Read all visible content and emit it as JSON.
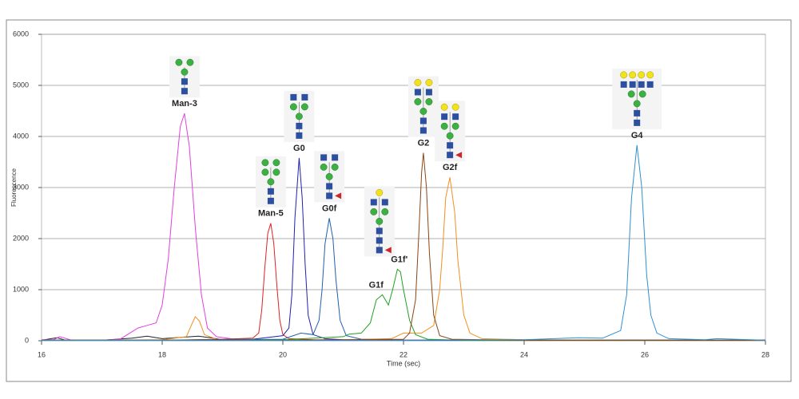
{
  "chart_data": {
    "type": "line",
    "xlabel": "Time (sec)",
    "ylabel": "Fluorescence",
    "xlim": [
      16,
      28
    ],
    "xticks": [
      16,
      18,
      20,
      22,
      24,
      26,
      28
    ],
    "ylim": [
      0,
      6000
    ],
    "yticks": [
      0,
      1000,
      2000,
      3000,
      4000,
      5000,
      6000
    ],
    "grid": true,
    "series": [
      {
        "color": "#222222",
        "x": [
          16,
          16.25,
          16.4,
          17,
          17.5,
          17.75,
          18,
          18.6,
          18.8,
          19,
          20,
          28
        ],
        "values": [
          10,
          60,
          10,
          10,
          50,
          90,
          40,
          90,
          60,
          20,
          10,
          10
        ]
      },
      {
        "color": "#e040e0",
        "x": [
          16,
          16.2,
          16.3,
          16.5,
          17,
          17.3,
          17.6,
          17.75,
          17.9,
          18.0,
          18.1,
          18.2,
          18.3,
          18.37,
          18.45,
          18.55,
          18.65,
          18.75,
          18.9,
          19.2,
          20,
          21,
          22,
          24,
          26,
          28
        ],
        "values": [
          20,
          20,
          80,
          10,
          10,
          30,
          250,
          300,
          350,
          700,
          1600,
          3000,
          4200,
          4450,
          3800,
          2200,
          900,
          250,
          80,
          30,
          20,
          10,
          10,
          10,
          10,
          10
        ]
      },
      {
        "color": "#f09020",
        "x": [
          16,
          17,
          18,
          18.4,
          18.5,
          18.55,
          18.62,
          18.7,
          18.9,
          19.5,
          20,
          21,
          21.8,
          22.0,
          22.3,
          22.5,
          22.6,
          22.65,
          22.7,
          22.77,
          22.85,
          22.9,
          23.0,
          23.1,
          23.3,
          24,
          26,
          28
        ],
        "values": [
          10,
          10,
          20,
          80,
          350,
          470,
          380,
          120,
          30,
          20,
          20,
          20,
          40,
          150,
          150,
          300,
          1000,
          1800,
          2800,
          3200,
          2500,
          1600,
          500,
          150,
          40,
          20,
          10,
          10
        ]
      },
      {
        "color": "#e02020",
        "x": [
          16,
          18,
          19,
          19.5,
          19.6,
          19.65,
          19.7,
          19.75,
          19.8,
          19.85,
          19.9,
          19.95,
          20.0,
          20.1,
          20.5,
          22,
          28
        ],
        "values": [
          10,
          10,
          30,
          50,
          150,
          600,
          1400,
          2100,
          2300,
          1900,
          1100,
          400,
          120,
          40,
          20,
          10,
          10
        ]
      },
      {
        "color": "#2020b0",
        "x": [
          16,
          18,
          19.5,
          20.0,
          20.1,
          20.15,
          20.2,
          20.27,
          20.32,
          20.37,
          20.42,
          20.5,
          20.7,
          21,
          22,
          28
        ],
        "values": [
          10,
          10,
          30,
          100,
          250,
          900,
          2400,
          3580,
          2800,
          1500,
          500,
          120,
          40,
          20,
          10,
          10
        ]
      },
      {
        "color": "#1f5fb0",
        "x": [
          16,
          18,
          20,
          20.3,
          20.5,
          20.6,
          20.65,
          20.7,
          20.77,
          20.83,
          20.88,
          20.95,
          21.05,
          21.3,
          22,
          28
        ],
        "values": [
          10,
          10,
          30,
          150,
          120,
          400,
          1000,
          1900,
          2400,
          2000,
          1200,
          400,
          100,
          30,
          10,
          10
        ]
      },
      {
        "color": "#20a020",
        "x": [
          16,
          18,
          20,
          21,
          21.1,
          21.3,
          21.45,
          21.55,
          21.65,
          21.75,
          21.82,
          21.9,
          21.95,
          22.0,
          22.1,
          22.2,
          22.4,
          23,
          28
        ],
        "values": [
          10,
          10,
          20,
          80,
          130,
          150,
          350,
          800,
          900,
          700,
          1000,
          1400,
          1350,
          1000,
          400,
          120,
          30,
          10,
          10
        ]
      },
      {
        "color": "#8b4513",
        "x": [
          16,
          18,
          20,
          22.0,
          22.1,
          22.2,
          22.25,
          22.3,
          22.33,
          22.38,
          22.43,
          22.5,
          22.6,
          22.8,
          24,
          28
        ],
        "values": [
          10,
          10,
          10,
          30,
          150,
          800,
          2000,
          3300,
          3680,
          3000,
          1700,
          500,
          100,
          30,
          10,
          10
        ]
      },
      {
        "color": "#3090d0",
        "x": [
          16,
          18,
          22,
          24,
          24.9,
          25.3,
          25.6,
          25.7,
          25.78,
          25.87,
          25.95,
          26.03,
          26.1,
          26.2,
          26.4,
          27,
          27.2,
          28
        ],
        "values": [
          10,
          10,
          10,
          20,
          60,
          50,
          200,
          900,
          2800,
          3830,
          3000,
          1300,
          500,
          150,
          40,
          20,
          40,
          10
        ]
      }
    ],
    "annotations": [
      {
        "text": "Man-3",
        "x": 18.37,
        "y": 4450
      },
      {
        "text": "Man-5",
        "x": 19.8,
        "y": 2300
      },
      {
        "text": "G0",
        "x": 20.27,
        "y": 3580
      },
      {
        "text": "G0f",
        "x": 20.77,
        "y": 2400
      },
      {
        "text": "G1f",
        "x": 21.6,
        "y": 900
      },
      {
        "text": "G1f'",
        "x": 21.93,
        "y": 1400
      },
      {
        "text": "G2",
        "x": 22.33,
        "y": 3680
      },
      {
        "text": "G2f",
        "x": 22.77,
        "y": 3200
      },
      {
        "text": "G4",
        "x": 25.87,
        "y": 3830
      }
    ]
  }
}
